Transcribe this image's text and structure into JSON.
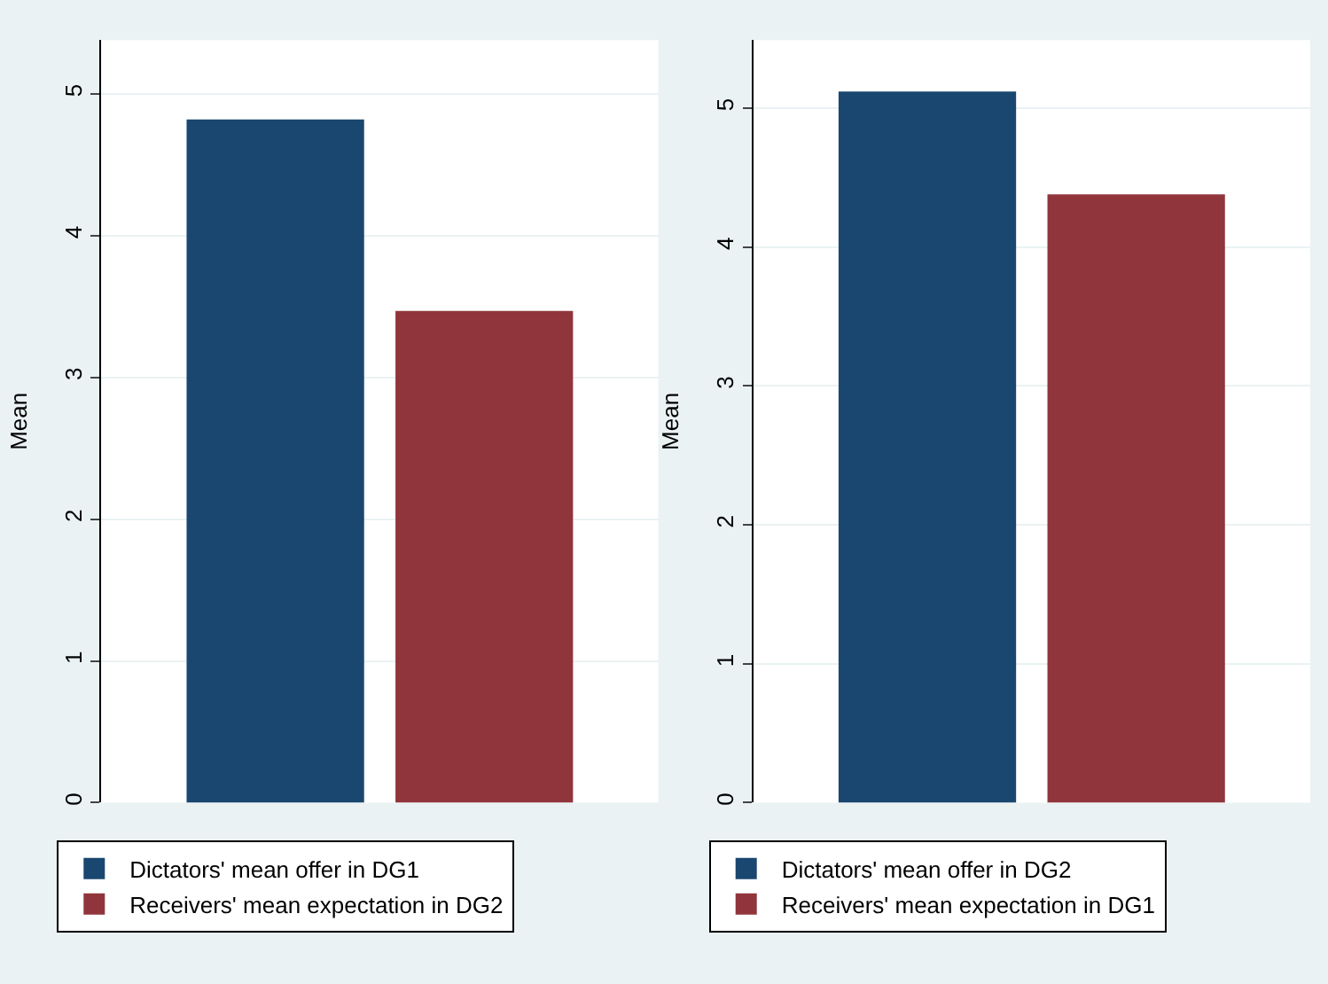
{
  "chart_data": [
    {
      "type": "bar",
      "ylabel": "Mean",
      "categories": [
        null
      ],
      "ylim": [
        0,
        5.38
      ],
      "yticks": [
        0,
        1,
        2,
        3,
        4,
        5
      ],
      "grid": "y",
      "legend": "bottom",
      "series": [
        {
          "name": "Dictators' mean offer in DG1",
          "color": "#1a476f",
          "values": [
            4.82
          ]
        },
        {
          "name": "Receivers' mean expectation in DG2",
          "color": "#90353b",
          "values": [
            3.47
          ]
        }
      ]
    },
    {
      "type": "bar",
      "ylabel": "Mean",
      "categories": [
        null
      ],
      "ylim": [
        0,
        5.49
      ],
      "yticks": [
        0,
        1,
        2,
        3,
        4,
        5
      ],
      "grid": "y",
      "legend": "bottom",
      "series": [
        {
          "name": "Dictators' mean offer in DG2",
          "color": "#1a476f",
          "values": [
            5.12
          ]
        },
        {
          "name": "Receivers' mean expectation in DG1",
          "color": "#90353b",
          "values": [
            4.38
          ]
        }
      ]
    }
  ]
}
